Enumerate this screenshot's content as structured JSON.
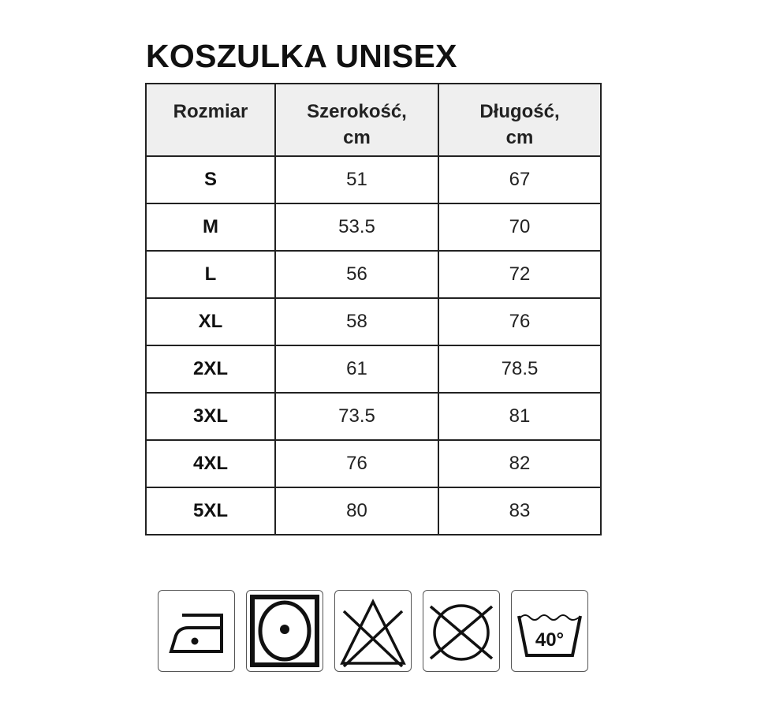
{
  "title": "KOSZULKA UNISEX",
  "table": {
    "headers": [
      "Rozmiar",
      "Szerokość,\ncm",
      "Długość,\ncm"
    ],
    "header_lines": [
      [
        "Rozmiar"
      ],
      [
        "Szerokość,",
        "cm"
      ],
      [
        "Długość,",
        "cm"
      ]
    ],
    "rows": [
      [
        "S",
        "51",
        "67"
      ],
      [
        "M",
        "53.5",
        "70"
      ],
      [
        "L",
        "56",
        "72"
      ],
      [
        "XL",
        "58",
        "76"
      ],
      [
        "2XL",
        "61",
        "78.5"
      ],
      [
        "3XL",
        "73.5",
        "81"
      ],
      [
        "4XL",
        "76",
        "82"
      ],
      [
        "5XL",
        "80",
        "83"
      ]
    ]
  },
  "care_icons": [
    {
      "name": "iron-low-temperature-icon"
    },
    {
      "name": "tumble-dry-icon"
    },
    {
      "name": "do-not-bleach-icon"
    },
    {
      "name": "do-not-dry-clean-icon"
    },
    {
      "name": "wash-40-icon",
      "label": "40°"
    }
  ]
}
